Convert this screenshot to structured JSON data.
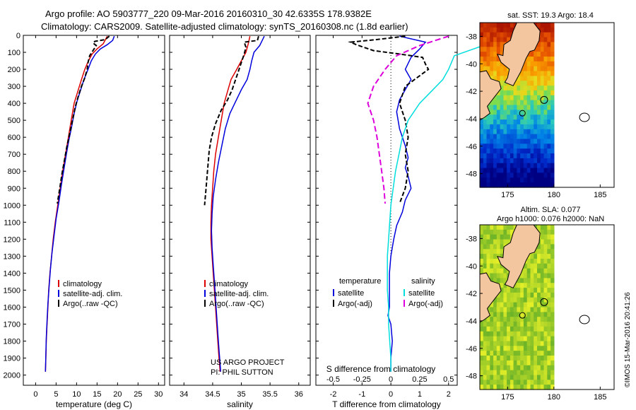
{
  "header": {
    "line1": "Argo profile: AO 5903777_220 09-Mar-2016 20160310_30 42.6335S 178.9382E",
    "line2": "Climatology: CARS2009. Satellite-adjusted climatology: synTS_20160308.nc (1.8d earlier)"
  },
  "copyright": "©IMOS 15-Mar-2016 20:41:26",
  "chart_data": [
    {
      "id": "temperature",
      "type": "line",
      "xlabel": "temperature (deg C)",
      "xlim": [
        -3,
        31.5
      ],
      "xticks": [
        0,
        5,
        10,
        15,
        20,
        25,
        30
      ],
      "ylim": [
        0,
        2060
      ],
      "yticks": [
        0,
        100,
        200,
        300,
        400,
        500,
        600,
        700,
        800,
        900,
        1000,
        1100,
        1200,
        1300,
        1400,
        1500,
        1600,
        1700,
        1800,
        1900,
        2000
      ],
      "y_reversed": true,
      "legend": {
        "placement": "lower-middle",
        "entries": [
          "climatology",
          "satellite-adj. clim.",
          "Argo(..raw -QC)"
        ]
      },
      "series": [
        {
          "name": "climatology",
          "color": "#dd0000",
          "dash": "",
          "points": [
            [
              17.5,
              5
            ],
            [
              16.5,
              50
            ],
            [
              15.0,
              80
            ],
            [
              13.8,
              110
            ],
            [
              12.9,
              150
            ],
            [
              12.0,
              200
            ],
            [
              11.2,
              260
            ],
            [
              10.3,
              330
            ],
            [
              9.4,
              400
            ],
            [
              8.7,
              500
            ],
            [
              8.0,
              600
            ],
            [
              7.3,
              700
            ],
            [
              6.6,
              800
            ],
            [
              6.0,
              900
            ],
            [
              5.4,
              1000
            ],
            [
              4.8,
              1100
            ],
            [
              4.3,
              1200
            ],
            [
              3.9,
              1300
            ],
            [
              3.5,
              1400
            ],
            [
              3.2,
              1500
            ],
            [
              3.0,
              1600
            ],
            [
              2.8,
              1700
            ],
            [
              2.6,
              1800
            ],
            [
              2.5,
              1900
            ],
            [
              2.4,
              1980
            ]
          ]
        },
        {
          "name": "satellite-adj. clim.",
          "color": "#0000dd",
          "dash": "",
          "points": [
            [
              19.2,
              5
            ],
            [
              18.8,
              30
            ],
            [
              17.5,
              55
            ],
            [
              15.8,
              80
            ],
            [
              14.6,
              110
            ],
            [
              13.6,
              150
            ],
            [
              12.8,
              200
            ],
            [
              11.8,
              260
            ],
            [
              11.0,
              320
            ],
            [
              10.1,
              390
            ],
            [
              9.4,
              460
            ],
            [
              8.7,
              550
            ],
            [
              8.1,
              620
            ],
            [
              7.5,
              700
            ],
            [
              6.9,
              790
            ],
            [
              6.3,
              880
            ],
            [
              5.7,
              980
            ],
            [
              5.0,
              1080
            ],
            [
              4.5,
              1180
            ],
            [
              4.0,
              1280
            ],
            [
              3.6,
              1380
            ],
            [
              3.3,
              1480
            ],
            [
              3.0,
              1580
            ],
            [
              2.8,
              1680
            ],
            [
              2.6,
              1780
            ],
            [
              2.5,
              1880
            ],
            [
              2.4,
              1980
            ]
          ]
        },
        {
          "name": "Argo(..raw -QC)",
          "color": "#000000",
          "dash": "6,3",
          "points": [
            [
              18.0,
              5
            ],
            [
              17.0,
              25
            ],
            [
              14.5,
              35
            ],
            [
              14.0,
              45
            ],
            [
              14.8,
              60
            ],
            [
              14.0,
              90
            ],
            [
              13.2,
              120
            ],
            [
              12.8,
              160
            ],
            [
              12.6,
              200
            ],
            [
              12.0,
              250
            ],
            [
              11.2,
              300
            ],
            [
              10.4,
              360
            ],
            [
              9.7,
              420
            ],
            [
              9.0,
              500
            ],
            [
              8.3,
              580
            ],
            [
              7.6,
              660
            ],
            [
              7.0,
              740
            ],
            [
              6.4,
              820
            ],
            [
              5.9,
              900
            ],
            [
              5.3,
              990
            ]
          ]
        }
      ]
    },
    {
      "id": "salinity",
      "type": "line",
      "xlabel": "salinity",
      "xlim": [
        33.75,
        36.2
      ],
      "xticks": [
        34,
        34.5,
        35,
        35.5,
        36
      ],
      "ylim": [
        0,
        2060
      ],
      "y_reversed": true,
      "legend": {
        "placement": "lower-middle",
        "entries": [
          "climatology",
          "satellite-adj. clim.",
          "Argo(..raw -QC)"
        ]
      },
      "annotation": [
        "US ARGO PROJECT",
        "PI: PHIL SUTTON"
      ],
      "series": [
        {
          "name": "climatology",
          "color": "#dd0000",
          "dash": "",
          "points": [
            [
              35.15,
              5
            ],
            [
              35.12,
              50
            ],
            [
              35.08,
              100
            ],
            [
              35.0,
              150
            ],
            [
              34.92,
              200
            ],
            [
              34.82,
              260
            ],
            [
              34.76,
              330
            ],
            [
              34.7,
              400
            ],
            [
              34.65,
              500
            ],
            [
              34.6,
              600
            ],
            [
              34.55,
              700
            ],
            [
              34.52,
              800
            ],
            [
              34.5,
              900
            ],
            [
              34.48,
              1000
            ],
            [
              34.47,
              1100
            ],
            [
              34.47,
              1200
            ],
            [
              34.49,
              1300
            ],
            [
              34.51,
              1400
            ],
            [
              34.53,
              1500
            ],
            [
              34.55,
              1600
            ],
            [
              34.57,
              1700
            ],
            [
              34.59,
              1800
            ],
            [
              34.61,
              1900
            ],
            [
              34.63,
              1980
            ]
          ]
        },
        {
          "name": "satellite-adj. clim.",
          "color": "#0000dd",
          "dash": "",
          "points": [
            [
              35.4,
              5
            ],
            [
              35.32,
              60
            ],
            [
              35.22,
              100
            ],
            [
              35.18,
              150
            ],
            [
              35.15,
              200
            ],
            [
              35.1,
              260
            ],
            [
              35.0,
              320
            ],
            [
              34.9,
              390
            ],
            [
              34.8,
              460
            ],
            [
              34.72,
              550
            ],
            [
              34.66,
              650
            ],
            [
              34.6,
              750
            ],
            [
              34.55,
              850
            ],
            [
              34.51,
              950
            ],
            [
              34.49,
              1050
            ],
            [
              34.48,
              1150
            ],
            [
              34.49,
              1250
            ],
            [
              34.51,
              1350
            ],
            [
              34.53,
              1450
            ],
            [
              34.55,
              1550
            ],
            [
              34.57,
              1650
            ],
            [
              34.59,
              1750
            ],
            [
              34.61,
              1850
            ],
            [
              34.64,
              1980
            ]
          ]
        },
        {
          "name": "Argo(..raw -QC)",
          "color": "#000000",
          "dash": "6,3",
          "points": [
            [
              35.3,
              5
            ],
            [
              35.28,
              30
            ],
            [
              35.05,
              40
            ],
            [
              35.08,
              70
            ],
            [
              35.05,
              110
            ],
            [
              35.0,
              160
            ],
            [
              34.95,
              210
            ],
            [
              34.9,
              260
            ],
            [
              34.84,
              320
            ],
            [
              34.76,
              380
            ],
            [
              34.65,
              440
            ],
            [
              34.55,
              520
            ],
            [
              34.48,
              600
            ],
            [
              34.44,
              680
            ],
            [
              34.42,
              760
            ],
            [
              34.4,
              840
            ],
            [
              34.38,
              920
            ],
            [
              34.36,
              1000
            ]
          ]
        }
      ]
    },
    {
      "id": "difference",
      "type": "line",
      "xlabel": "T difference from climatology",
      "xlabel_top": "S difference from climatology",
      "xlim": [
        -2.6,
        2.3
      ],
      "xticks": [
        -2,
        -1,
        0,
        1,
        2
      ],
      "xticks_top": [
        -0.5,
        -0.25,
        0,
        0.25,
        0.5
      ],
      "xticks_top_labels": [
        "-0.5",
        "-0.25",
        "0",
        "0.25",
        "0.5"
      ],
      "ylim": [
        0,
        2060
      ],
      "y_reversed": true,
      "legend": {
        "placement": "lower-middle",
        "headers": [
          "temperature",
          "salinity"
        ],
        "entries": [
          "satellite",
          "Argo(-adj)",
          "satellite",
          "Argo(-adj)"
        ]
      },
      "series": [
        {
          "name": "satellite",
          "group": "temperature",
          "color": "#0000dd",
          "dash": "",
          "points": [
            [
              0.3,
              5
            ],
            [
              1.2,
              40
            ],
            [
              1.0,
              80
            ],
            [
              0.7,
              130
            ],
            [
              0.5,
              200
            ],
            [
              0.7,
              260
            ],
            [
              0.5,
              320
            ],
            [
              0.3,
              380
            ],
            [
              0.2,
              450
            ],
            [
              0.3,
              550
            ],
            [
              0.5,
              650
            ],
            [
              0.6,
              720
            ],
            [
              0.5,
              780
            ],
            [
              0.6,
              830
            ],
            [
              0.7,
              900
            ],
            [
              0.5,
              970
            ],
            [
              0.4,
              1040
            ],
            [
              0.2,
              1120
            ],
            [
              0.1,
              1200
            ],
            [
              0.0,
              1300
            ],
            [
              -0.05,
              1400
            ],
            [
              -0.05,
              1500
            ],
            [
              -0.05,
              1600
            ],
            [
              -0.1,
              1650
            ],
            [
              0.0,
              1700
            ],
            [
              0.05,
              1800
            ],
            [
              0.0,
              1900
            ],
            [
              0.0,
              1980
            ]
          ]
        },
        {
          "name": "Argo(-adj)",
          "group": "temperature",
          "color": "#000000",
          "dash": "6,3",
          "points": [
            [
              0.5,
              5
            ],
            [
              -0.5,
              25
            ],
            [
              -1.4,
              40
            ],
            [
              -1.2,
              55
            ],
            [
              -0.6,
              90
            ],
            [
              0.3,
              110
            ],
            [
              1.1,
              130
            ],
            [
              1.2,
              170
            ],
            [
              1.3,
              200
            ],
            [
              0.9,
              250
            ],
            [
              0.5,
              300
            ],
            [
              0.3,
              400
            ],
            [
              0.5,
              500
            ],
            [
              0.6,
              600
            ],
            [
              0.5,
              700
            ],
            [
              0.6,
              800
            ],
            [
              0.5,
              900
            ],
            [
              0.3,
              990
            ]
          ]
        },
        {
          "name": "satellite",
          "group": "salinity",
          "color": "#00dddd",
          "dash": "",
          "points": [
            [
              0.9,
              5
            ],
            [
              0.8,
              60
            ],
            [
              0.55,
              120
            ],
            [
              0.5,
              200
            ],
            [
              0.45,
              260
            ],
            [
              0.35,
              330
            ],
            [
              0.25,
              400
            ],
            [
              0.15,
              500
            ],
            [
              0.1,
              600
            ],
            [
              0.07,
              700
            ],
            [
              0.04,
              800
            ],
            [
              0.02,
              900
            ],
            [
              0.0,
              1000
            ],
            [
              -0.01,
              1100
            ],
            [
              -0.02,
              1200
            ],
            [
              -0.03,
              1300
            ],
            [
              -0.03,
              1400
            ],
            [
              -0.03,
              1500
            ],
            [
              -0.02,
              1600
            ],
            [
              -0.02,
              1700
            ],
            [
              -0.01,
              1800
            ],
            [
              0.0,
              1900
            ],
            [
              0.0,
              1980
            ]
          ]
        },
        {
          "name": "Argo(-adj)",
          "group": "salinity",
          "color": "#dd00dd",
          "dash": "8,4",
          "points": [
            [
              0.5,
              5
            ],
            [
              0.25,
              60
            ],
            [
              0.05,
              120
            ],
            [
              -0.05,
              200
            ],
            [
              -0.15,
              300
            ],
            [
              -0.2,
              400
            ],
            [
              -0.15,
              500
            ],
            [
              -0.12,
              600
            ],
            [
              -0.1,
              700
            ],
            [
              -0.08,
              800
            ],
            [
              -0.06,
              900
            ],
            [
              -0.05,
              990
            ]
          ]
        }
      ]
    },
    {
      "id": "sst_map",
      "type": "heatmap",
      "title": "sat. SST: 19.3  Argo: 18.4",
      "xlim": [
        172,
        186.5
      ],
      "xticks": [
        175,
        180,
        185
      ],
      "ylim": [
        -49,
        -37
      ],
      "yticks": [
        -38,
        -40,
        -42,
        -44,
        -46,
        -48
      ],
      "data_extent_lon": [
        172,
        180
      ]
    },
    {
      "id": "sla_map",
      "type": "heatmap",
      "title_line1": "Altim. SLA: 0.077",
      "title_line2": "Argo h1000: 0.076  h2000: NaN",
      "xlim": [
        172,
        186.5
      ],
      "xticks": [
        175,
        180,
        185
      ],
      "ylim": [
        -49,
        -37
      ],
      "yticks": [
        -38,
        -40,
        -42,
        -44,
        -46,
        -48
      ],
      "data_extent_lon": [
        172,
        180
      ]
    }
  ]
}
